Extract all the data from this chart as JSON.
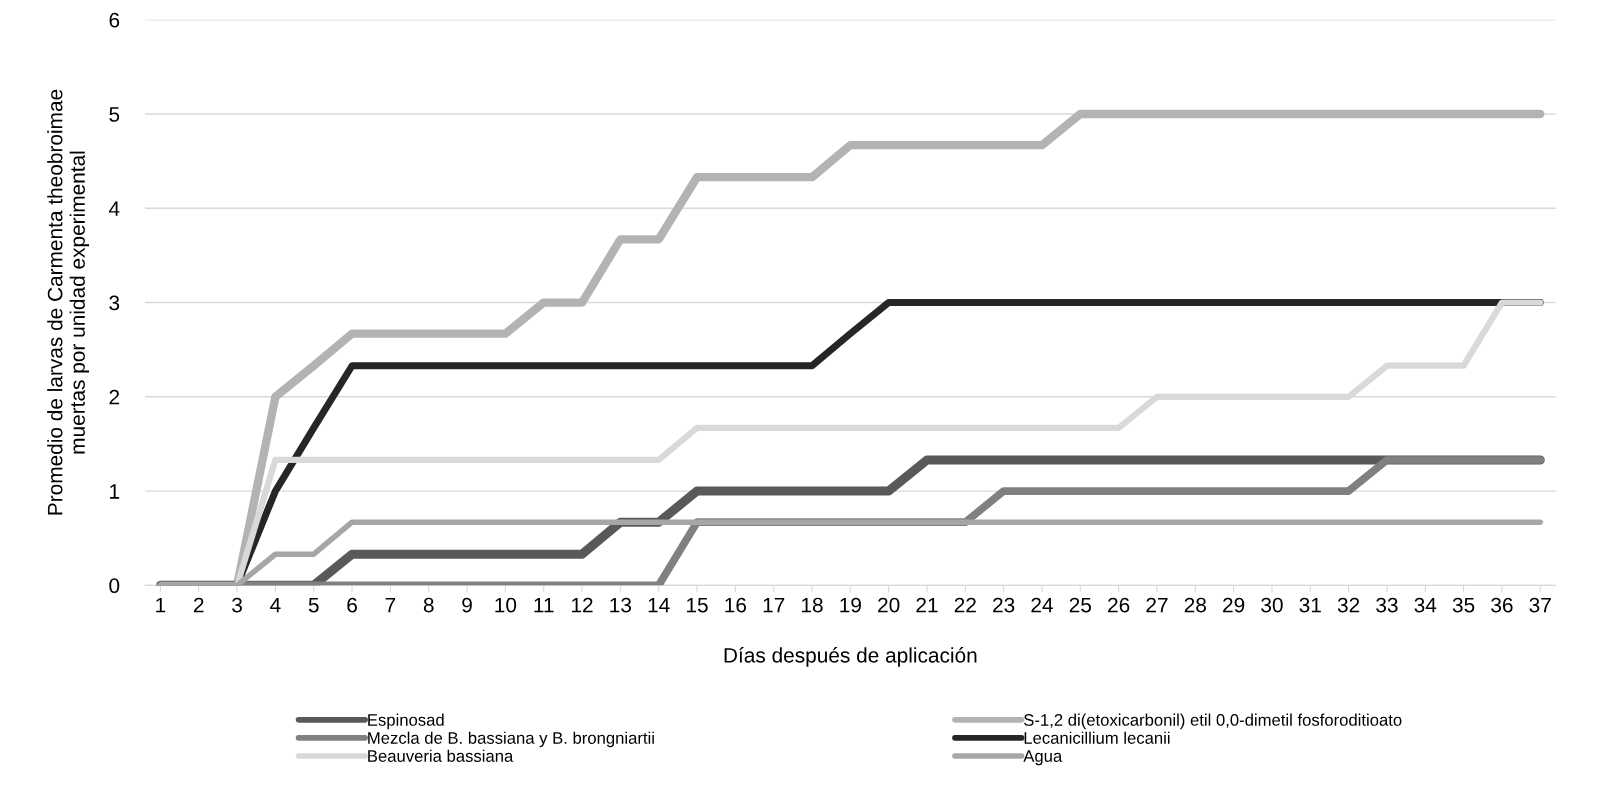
{
  "chart_data": {
    "type": "line",
    "xlabel": "Días después de aplicación",
    "ylabel": "Promedio de larvas de Carmenta theobroimae\nmuertas por unidad experimental",
    "categories": [
      "1",
      "2",
      "3",
      "4",
      "5",
      "6",
      "7",
      "8",
      "9",
      "10",
      "11",
      "12",
      "13",
      "14",
      "15",
      "16",
      "17",
      "18",
      "19",
      "20",
      "21",
      "22",
      "23",
      "24",
      "25",
      "26",
      "27",
      "28",
      "29",
      "30",
      "31",
      "32",
      "33",
      "34",
      "35",
      "36",
      "37"
    ],
    "ylim": [
      0,
      6
    ],
    "yticks": [
      0,
      1,
      2,
      3,
      4,
      5,
      6
    ],
    "grid": "y",
    "legend": "bottom",
    "marker": "none",
    "line_style": "solid",
    "series": [
      {
        "name": "Espinosad",
        "color": "#595959",
        "values": [
          0,
          0,
          0,
          0,
          0,
          0.33,
          0.33,
          0.33,
          0.33,
          0.33,
          0.33,
          0.33,
          0.67,
          0.67,
          1,
          1,
          1,
          1,
          1,
          1,
          1.33,
          1.33,
          1.33,
          1.33,
          1.33,
          1.33,
          1.33,
          1.33,
          1.33,
          1.33,
          1.33,
          1.33,
          1.33,
          1.33,
          1.33,
          1.33,
          1.33
        ]
      },
      {
        "name": "S-1,2 di(etoxicarbonil) etil 0,0-dimetil fosforoditioato",
        "color": "#b3b3b3",
        "values": [
          0,
          0,
          0,
          2,
          2.33,
          2.67,
          2.67,
          2.67,
          2.67,
          2.67,
          3,
          3,
          3.67,
          3.67,
          4.33,
          4.33,
          4.33,
          4.33,
          4.67,
          4.67,
          4.67,
          4.67,
          4.67,
          4.67,
          5,
          5,
          5,
          5,
          5,
          5,
          5,
          5,
          5,
          5,
          5,
          5,
          5
        ]
      },
      {
        "name": "Mezcla de B. bassiana y B. brongniartii",
        "color": "#808080",
        "values": [
          0,
          0,
          0,
          0,
          0,
          0,
          0,
          0,
          0,
          0,
          0,
          0,
          0,
          0,
          0.67,
          0.67,
          0.67,
          0.67,
          0.67,
          0.67,
          0.67,
          0.67,
          1,
          1,
          1,
          1,
          1,
          1,
          1,
          1,
          1,
          1,
          1.33,
          1.33,
          1.33,
          1.33,
          1.33
        ]
      },
      {
        "name": "Lecanicillium lecanii",
        "color": "#262626",
        "values": [
          0,
          0,
          0,
          1,
          1.67,
          2.33,
          2.33,
          2.33,
          2.33,
          2.33,
          2.33,
          2.33,
          2.33,
          2.33,
          2.33,
          2.33,
          2.33,
          2.33,
          2.67,
          3,
          3,
          3,
          3,
          3,
          3,
          3,
          3,
          3,
          3,
          3,
          3,
          3,
          3,
          3,
          3,
          3,
          3
        ]
      },
      {
        "name": "Beauveria bassiana",
        "color": "#d9d9d9",
        "values": [
          0,
          0,
          0,
          1.33,
          1.33,
          1.33,
          1.33,
          1.33,
          1.33,
          1.33,
          1.33,
          1.33,
          1.33,
          1.33,
          1.67,
          1.67,
          1.67,
          1.67,
          1.67,
          1.67,
          1.67,
          1.67,
          1.67,
          1.67,
          1.67,
          1.67,
          2,
          2,
          2,
          2,
          2,
          2,
          2.33,
          2.33,
          2.33,
          3,
          3
        ]
      },
      {
        "name": "Agua",
        "color": "#a6a6a6",
        "values": [
          0,
          0,
          0,
          0.33,
          0.33,
          0.67,
          0.67,
          0.67,
          0.67,
          0.67,
          0.67,
          0.67,
          0.67,
          0.67,
          0.67,
          0.67,
          0.67,
          0.67,
          0.67,
          0.67,
          0.67,
          0.67,
          0.67,
          0.67,
          0.67,
          0.67,
          0.67,
          0.67,
          0.67,
          0.67,
          0.67,
          0.67,
          0.67,
          0.67,
          0.67,
          0.67,
          0.67
        ]
      }
    ]
  }
}
